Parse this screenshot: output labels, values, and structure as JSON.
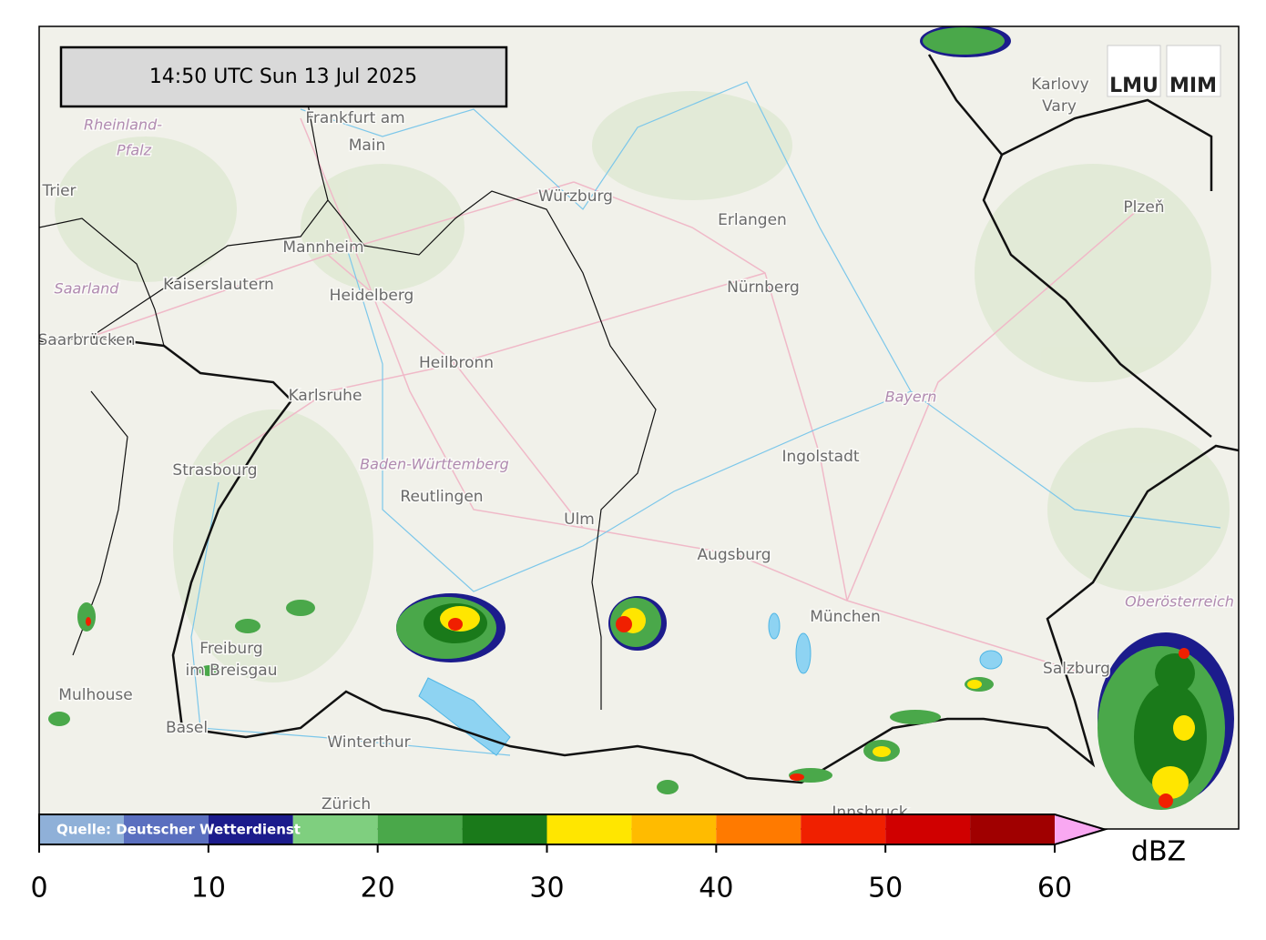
{
  "header": {
    "timestamp": "14:50 UTC  Sun 13 Jul 2025",
    "logo_left": "LMU",
    "logo_right": "MIM"
  },
  "map": {
    "places": [
      "Frankfurt am",
      "Main",
      "Trier",
      "Kaiserslautern",
      "Mannheim",
      "Heidelberg",
      "Saarbrücken",
      "Karlsruhe",
      "Heilbronn",
      "Würzburg",
      "Erlangen",
      "Nürnberg",
      "Strasbourg",
      "Reutlingen",
      "Ulm",
      "Ingolstadt",
      "Augsburg",
      "München",
      "Freiburg",
      "im Breisgau",
      "Mulhouse",
      "Basel",
      "Winterthur",
      "Zürich",
      "Innsbruck",
      "Salzburg",
      "Karlovy",
      "Vary",
      "Plzeň"
    ],
    "regions": [
      "Rheinland-",
      "Pfalz",
      "Saarland",
      "Baden-Württemberg",
      "Bayern",
      "Oberösterreich"
    ]
  },
  "colorbar": {
    "source": "Quelle: Deutscher Wetterdienst",
    "label": "dBZ",
    "xlim": [
      0,
      60
    ],
    "xticks": [
      0,
      10,
      20,
      30,
      40,
      50,
      60
    ],
    "bounds": [
      0,
      5,
      10,
      15,
      20,
      25,
      30,
      35,
      40,
      45,
      50,
      55,
      60
    ],
    "colors": [
      "#8fb0d8",
      "#5a6fbf",
      "#1c1c8c",
      "#7fcf7f",
      "#4aa84a",
      "#1a7a1a",
      "#ffe600",
      "#ffbb00",
      "#ff7a00",
      "#f02000",
      "#d00000",
      "#a00000"
    ],
    "extend_color": "#f9a8f2"
  }
}
